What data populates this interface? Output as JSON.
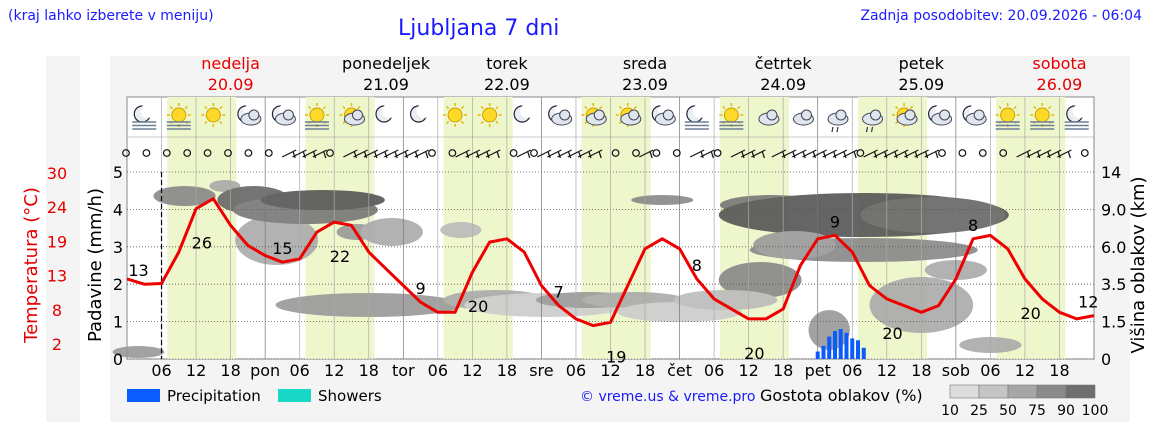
{
  "header": {
    "region_note": "(kraj lahko izberete v meniju)",
    "title": "Ljubljana 7 dni",
    "last_update": "Zadnja posodobitev: 20.09.2026 - 06:04"
  },
  "days": [
    {
      "name": "nedelja",
      "date": "20.09",
      "weekend": true
    },
    {
      "name": "ponedeljek",
      "date": "21.09",
      "weekend": false
    },
    {
      "name": "torek",
      "date": "22.09",
      "weekend": false
    },
    {
      "name": "sreda",
      "date": "23.09",
      "weekend": false
    },
    {
      "name": "četrtek",
      "date": "24.09",
      "weekend": false
    },
    {
      "name": "petek",
      "date": "25.09",
      "weekend": false
    },
    {
      "name": "sobota",
      "date": "26.09",
      "weekend": true
    }
  ],
  "colors": {
    "title": "#1a1aff",
    "weekend": "#e60000",
    "temperature_line": "#ee0000",
    "precipitation": "#0a5cff",
    "showers": "#19d9c6",
    "daylight": "#eef6cc"
  },
  "icons": [
    "moon-fog-icon",
    "sun-fog-icon",
    "sun-icon",
    "moon-cloud-icon",
    "moon-cloud-icon",
    "sun-fog-icon",
    "sun-cloud-icon",
    "moon-icon",
    "moon-icon",
    "sun-icon",
    "sun-icon",
    "moon-icon",
    "moon-cloud-icon",
    "sun-cloud-icon",
    "sun-cloud-icon",
    "moon-cloud-icon",
    "moon-fog-icon",
    "sun-fog-icon",
    "cloud-icon",
    "cloud-icon",
    "cloud-rain-icon",
    "cloud-rain-icon",
    "sun-cloud-icon",
    "moon-cloud-icon",
    "moon-cloud-icon",
    "sun-fog-icon",
    "sun-fog-icon",
    "moon-fog-icon"
  ],
  "chart_data": {
    "type": "line",
    "title": "Ljubljana 7 dni",
    "x_unit": "hours from 20.09 00:00",
    "x_tick_labels": [
      "06",
      "12",
      "18",
      "pon",
      "06",
      "12",
      "18",
      "tor",
      "06",
      "12",
      "18",
      "sre",
      "06",
      "12",
      "18",
      "čet",
      "06",
      "12",
      "18",
      "pet",
      "06",
      "12",
      "18",
      "sob",
      "06",
      "12",
      "18"
    ],
    "now_marker_hour": 6,
    "xlim": [
      0,
      168
    ],
    "y_left_temperature": {
      "label": "Temperatura (°C)",
      "ticks": [
        "30",
        "24",
        "19",
        "13",
        "8",
        "2"
      ],
      "range": [
        2,
        30
      ]
    },
    "y_left_precipitation": {
      "label": "Padavine (mm/h)",
      "ticks": [
        "5",
        "4",
        "3",
        "2",
        "1",
        "0"
      ],
      "range": [
        0,
        5
      ]
    },
    "y_right_cloud_height": {
      "label": "Višina oblakov (km)",
      "ticks": [
        "14",
        "9.0",
        "6.0",
        "3.5",
        "1.5",
        "0"
      ]
    },
    "series": [
      {
        "name": "Temperatura",
        "x": [
          0,
          3,
          6,
          9,
          12,
          15,
          18,
          21,
          24,
          27,
          30,
          33,
          36,
          39,
          42,
          45,
          48,
          51,
          54,
          57,
          60,
          63,
          66,
          69,
          72,
          75,
          78,
          81,
          84,
          87,
          90,
          93,
          96,
          99,
          102,
          105,
          108,
          111,
          114,
          117,
          120,
          123,
          126,
          129,
          132,
          135,
          138,
          141,
          144,
          147,
          150,
          153,
          156,
          159,
          162,
          165,
          168
        ],
        "values": [
          14,
          13.2,
          13.3,
          18,
          24.5,
          26,
          22,
          19,
          17.5,
          16.5,
          17,
          21,
          22.5,
          22,
          18,
          15.5,
          13,
          10.5,
          9,
          9,
          15,
          19.5,
          20,
          18,
          13,
          10,
          8,
          7,
          7.5,
          13,
          18.5,
          20,
          18.5,
          14,
          11,
          9.5,
          8,
          8,
          9.5,
          16,
          20,
          20.5,
          18,
          13,
          11,
          10,
          9,
          10,
          14,
          20,
          20.5,
          18.5,
          14,
          11,
          9,
          8,
          8.5
        ]
      }
    ],
    "temperature_labels": [
      {
        "hour": 2,
        "value": "13"
      },
      {
        "hour": 13,
        "value": "26"
      },
      {
        "hour": 27,
        "value": "15"
      },
      {
        "hour": 37,
        "value": "22"
      },
      {
        "hour": 51,
        "value": "9"
      },
      {
        "hour": 61,
        "value": "20"
      },
      {
        "hour": 75,
        "value": "7"
      },
      {
        "hour": 85,
        "value": "19"
      },
      {
        "hour": 99,
        "value": "8"
      },
      {
        "hour": 109,
        "value": "20"
      },
      {
        "hour": 123,
        "value": "9"
      },
      {
        "hour": 133,
        "value": "20"
      },
      {
        "hour": 147,
        "value": "8"
      },
      {
        "hour": 157,
        "value": "20"
      },
      {
        "hour": 167,
        "value": "12"
      }
    ],
    "precipitation_bars": {
      "x": [
        120,
        121,
        122,
        123,
        124,
        125,
        126,
        127,
        128
      ],
      "values": [
        0.2,
        0.35,
        0.6,
        0.75,
        0.8,
        0.7,
        0.55,
        0.5,
        0.3
      ]
    },
    "legend": [
      {
        "name": "Precipitation",
        "color": "#0a5cff"
      },
      {
        "name": "Showers",
        "color": "#19d9c6"
      }
    ],
    "cloud_density_label": "Gostota oblakov (%)",
    "cloud_density_levels": [
      "10",
      "25",
      "50",
      "75",
      "90",
      "100"
    ],
    "credit": "© vreme.us & vreme.pro"
  }
}
